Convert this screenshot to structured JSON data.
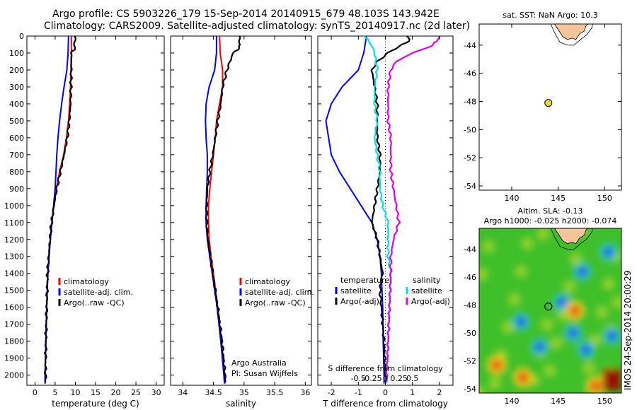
{
  "header": {
    "line1": "Argo profile: CS 5903226_179 15-Sep-2014 20140915_679 48.103S 143.942E",
    "line2": "Climatology: CARS2009. Satellite-adjusted climatology: synTS_20140917.nc (2d later)"
  },
  "watermark": "IMOS 24-Sep-2014 20:00:29",
  "colors": {
    "climatology": "#ff0000",
    "satellite": "#0000ff",
    "argo": "#000000",
    "sat_salinity": "#00e0e0",
    "argo_salinity_adj": "#e000e0",
    "land": "#f4c49a",
    "float_marker": "#e8d830"
  },
  "chart_data": [
    {
      "id": "temperature",
      "type": "line",
      "xlabel": "temperature (deg C)",
      "ylabel": "",
      "xlim": [
        -2,
        32
      ],
      "ylim": [
        2060,
        0
      ],
      "xticks": [
        0,
        5,
        10,
        15,
        20,
        25,
        30
      ],
      "yticks": [
        0,
        100,
        200,
        300,
        400,
        500,
        600,
        700,
        800,
        900,
        1000,
        1100,
        1200,
        1300,
        1400,
        1500,
        1600,
        1700,
        1800,
        1900,
        2000
      ],
      "legend": [
        "climatology",
        "satellite-adj. clim.",
        "Argo(..raw -QC)"
      ],
      "series": [
        {
          "name": "climatology",
          "color_key": "climatology",
          "depth": [
            0,
            100,
            200,
            300,
            400,
            500,
            600,
            700,
            800,
            900,
            1000,
            1100,
            1200,
            1300,
            1400,
            1600,
            1800,
            2000,
            2050
          ],
          "values": [
            9.0,
            9.0,
            8.9,
            8.8,
            8.6,
            8.3,
            7.8,
            7.1,
            6.1,
            5.3,
            4.7,
            4.2,
            3.8,
            3.5,
            3.2,
            2.9,
            2.7,
            2.5,
            2.5
          ]
        },
        {
          "name": "satellite-adj. clim.",
          "color_key": "satellite",
          "depth": [
            0,
            100,
            200,
            300,
            400,
            500,
            600,
            700,
            800,
            900,
            1000,
            1100,
            1200,
            1300,
            1400,
            1600,
            1800,
            2000,
            2050
          ],
          "values": [
            8.3,
            8.2,
            7.9,
            7.2,
            6.6,
            6.1,
            5.7,
            5.4,
            5.2,
            5.0,
            4.6,
            4.2,
            3.8,
            3.5,
            3.2,
            2.9,
            2.7,
            2.5,
            2.5
          ]
        },
        {
          "name": "Argo(..raw -QC)",
          "color_key": "argo",
          "depth": [
            0,
            40,
            80,
            100,
            200,
            300,
            400,
            500,
            600,
            700,
            800,
            900,
            1000,
            1100,
            1200,
            1300,
            1400,
            1600,
            1800,
            2000,
            2040
          ],
          "values": [
            9.8,
            9.9,
            9.7,
            9.0,
            9.0,
            8.9,
            8.8,
            8.5,
            8.0,
            7.2,
            6.3,
            5.4,
            4.7,
            4.1,
            3.7,
            3.4,
            3.1,
            2.9,
            2.7,
            2.6,
            2.6
          ]
        }
      ]
    },
    {
      "id": "salinity",
      "type": "line",
      "xlabel": "salinity",
      "xlim": [
        33.8,
        36.1
      ],
      "ylim": [
        2060,
        0
      ],
      "xticks": [
        34,
        34.5,
        35,
        35.5,
        36
      ],
      "legend": [
        "climatology",
        "satellite-adj. clim.",
        "Argo(..raw -QC)"
      ],
      "annotation": [
        "Argo Australia",
        "PI: Susan Wijffels"
      ],
      "series": [
        {
          "name": "climatology",
          "color_key": "climatology",
          "depth": [
            0,
            100,
            200,
            300,
            400,
            500,
            600,
            700,
            800,
            900,
            1000,
            1100,
            1200,
            1300,
            1400,
            1600,
            1800,
            2000,
            2050
          ],
          "values": [
            34.6,
            34.61,
            34.65,
            34.65,
            34.6,
            34.55,
            34.53,
            34.5,
            34.47,
            34.44,
            34.42,
            34.42,
            34.43,
            34.46,
            34.5,
            34.57,
            34.63,
            34.68,
            34.69
          ]
        },
        {
          "name": "satellite-adj. clim.",
          "color_key": "satellite",
          "depth": [
            0,
            100,
            200,
            300,
            400,
            500,
            600,
            700,
            800,
            900,
            1000,
            1100,
            1200,
            1300,
            1400,
            1600,
            1800,
            2000,
            2050
          ],
          "values": [
            34.55,
            34.55,
            34.52,
            34.43,
            34.38,
            34.37,
            34.38,
            34.4,
            34.4,
            34.39,
            34.38,
            34.38,
            34.4,
            34.44,
            34.48,
            34.56,
            34.62,
            34.67,
            34.68
          ]
        },
        {
          "name": "Argo(..raw -QC)",
          "color_key": "argo",
          "depth": [
            0,
            50,
            80,
            100,
            200,
            300,
            400,
            500,
            600,
            700,
            800,
            900,
            1000,
            1100,
            1200,
            1300,
            1400,
            1600,
            1800,
            2000,
            2040
          ],
          "values": [
            34.92,
            34.93,
            34.9,
            34.82,
            34.72,
            34.65,
            34.62,
            34.57,
            34.53,
            34.49,
            34.44,
            34.4,
            34.39,
            34.39,
            34.41,
            34.45,
            34.49,
            34.57,
            34.64,
            34.69,
            34.7
          ]
        }
      ]
    },
    {
      "id": "difference",
      "type": "line",
      "xlabel": "T difference from climatology",
      "xlabel_top": "S difference from climatology",
      "xlim": [
        -2.5,
        2.5
      ],
      "ylim": [
        2060,
        0
      ],
      "xticks": [
        -2,
        -1,
        0,
        1,
        2
      ],
      "xticklabels": [
        "-2",
        "-1",
        "0",
        "1",
        "2"
      ],
      "s_ticklabels": [
        "-0.5",
        "-0.25",
        "0",
        "0.25",
        "0.5"
      ],
      "legend_temperature_title": "temperature",
      "legend_salinity_title": "salinity",
      "legend_temperature": [
        "satellite",
        "Argo(-adj)"
      ],
      "legend_salinity": [
        "satellite",
        "Argo(-adj)"
      ],
      "series": [
        {
          "name": "satellite",
          "group": "temperature",
          "color_key": "satellite",
          "depth": [
            0,
            100,
            200,
            300,
            400,
            500,
            600,
            700,
            800,
            900,
            1000,
            1100,
            1200,
            1300,
            1400,
            1600,
            1800,
            2000,
            2050
          ],
          "values": [
            -0.7,
            -0.8,
            -1.0,
            -1.6,
            -2.0,
            -2.2,
            -2.1,
            -2.0,
            -1.7,
            -1.3,
            -0.9,
            -0.5,
            -0.3,
            -0.2,
            -0.15,
            -0.1,
            -0.08,
            -0.05,
            -0.05
          ]
        },
        {
          "name": "Argo(-adj)",
          "group": "temperature",
          "color_key": "argo",
          "depth": [
            0,
            30,
            60,
            100,
            150,
            200,
            300,
            400,
            500,
            600,
            700,
            800,
            900,
            1000,
            1100,
            1200,
            1300,
            1400,
            1500,
            1600,
            1800,
            2000,
            2040
          ],
          "values": [
            0.8,
            0.9,
            0.5,
            0.1,
            -0.3,
            -0.5,
            -0.4,
            -0.3,
            -0.3,
            -0.3,
            -0.2,
            -0.2,
            -0.3,
            -0.4,
            -0.5,
            -0.3,
            -0.2,
            -0.1,
            -0.2,
            -0.15,
            -0.05,
            0.0,
            0.0
          ]
        },
        {
          "name": "satellite",
          "group": "salinity",
          "color_key": "sat_salinity",
          "depth": [
            0,
            30,
            60,
            100,
            200,
            300,
            400,
            500,
            600,
            700,
            800,
            900,
            1000,
            1100,
            1200,
            1300,
            1400,
            1600,
            1800,
            2000,
            2050
          ],
          "values": [
            -0.8,
            -0.6,
            -0.5,
            -0.4,
            -0.3,
            -0.4,
            -0.4,
            -0.3,
            -0.4,
            -0.3,
            -0.2,
            -0.2,
            -0.1,
            0.1,
            0.1,
            0.1,
            0.2,
            0.15,
            0.1,
            0.05,
            0.05
          ]
        },
        {
          "name": "Argo(-adj)",
          "group": "salinity",
          "color_key": "argo_salinity_adj",
          "depth": [
            0,
            30,
            60,
            100,
            150,
            200,
            300,
            400,
            500,
            600,
            700,
            800,
            900,
            1000,
            1100,
            1200,
            1300,
            1400,
            1600,
            1800,
            2000,
            2040
          ],
          "values": [
            2.0,
            1.9,
            1.7,
            1.0,
            0.4,
            0.2,
            0.1,
            0.1,
            0.1,
            0.2,
            0.2,
            0.2,
            0.3,
            0.4,
            0.5,
            0.3,
            0.2,
            0.2,
            0.15,
            0.1,
            0.05,
            0.05
          ]
        }
      ]
    },
    {
      "id": "sst_map",
      "type": "scatter",
      "title": "sat. SST: NaN Argo: 10.3",
      "xlim": [
        136.5,
        151.8
      ],
      "ylim": [
        -54.3,
        -42.5
      ],
      "xticks": [
        140,
        145,
        150
      ],
      "yticks": [
        -44,
        -46,
        -48,
        -50,
        -52,
        -54
      ],
      "float_position": {
        "lon": 143.942,
        "lat": -48.103
      }
    },
    {
      "id": "sla_map",
      "type": "heatmap",
      "title_line1": "Altim. SLA: -0.13",
      "title_line2": "Argo h1000: -0.025 h2000: -0.074",
      "xlim": [
        136.5,
        151.8
      ],
      "ylim": [
        -54.3,
        -42.5
      ],
      "xticks": [
        140,
        145,
        150
      ],
      "yticks": [
        -44,
        -46,
        -48,
        -50,
        -52,
        -54
      ],
      "float_position": {
        "lon": 143.942,
        "lat": -48.103
      },
      "features": [
        {
          "kind": "low",
          "lon": 141.0,
          "lat": -49.2
        },
        {
          "kind": "low",
          "lon": 143.0,
          "lat": -51.0
        },
        {
          "kind": "low",
          "lon": 145.4,
          "lat": -47.8
        },
        {
          "kind": "low",
          "lon": 146.6,
          "lat": -50.0
        },
        {
          "kind": "low",
          "lon": 148.0,
          "lat": -51.2
        },
        {
          "kind": "low",
          "lon": 147.6,
          "lat": -45.6
        },
        {
          "kind": "low",
          "lon": 150.8,
          "lat": -50.2
        },
        {
          "kind": "low",
          "lon": 150.4,
          "lat": -44.2
        },
        {
          "kind": "high",
          "lon": 138.4,
          "lat": -52.3
        },
        {
          "kind": "high",
          "lon": 141.2,
          "lat": -53.2
        },
        {
          "kind": "high",
          "lon": 150.6,
          "lat": -53.2
        },
        {
          "kind": "high",
          "lon": 149.0,
          "lat": -53.8
        },
        {
          "kind": "high",
          "lon": 146.8,
          "lat": -48.4
        }
      ]
    }
  ]
}
